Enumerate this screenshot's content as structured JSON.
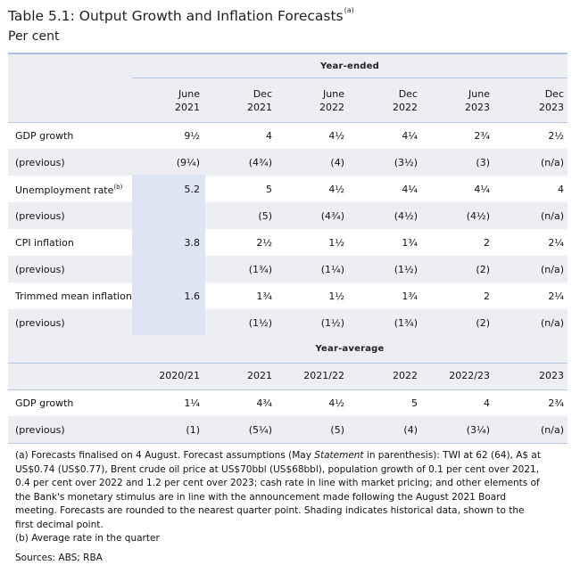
{
  "title": "Table 5.1: Output Growth and Inflation Forecasts",
  "title_note": "(a)",
  "subtitle": "Per cent",
  "section1": {
    "heading": "Year-ended",
    "columns": [
      {
        "line1": "June",
        "line2": "2021"
      },
      {
        "line1": "Dec",
        "line2": "2021"
      },
      {
        "line1": "June",
        "line2": "2022"
      },
      {
        "line1": "Dec",
        "line2": "2022"
      },
      {
        "line1": "June",
        "line2": "2023"
      },
      {
        "line1": "Dec",
        "line2": "2023"
      }
    ],
    "rows": [
      {
        "label": "GDP growth",
        "note": "",
        "values": [
          "9½",
          "4",
          "4½",
          "4¼",
          "2¾",
          "2½"
        ]
      },
      {
        "label": "(previous)",
        "note": "",
        "values": [
          "(9¼)",
          "(4¾)",
          "(4)",
          "(3½)",
          "(3)",
          "(n/a)"
        ]
      },
      {
        "label": "Unemployment rate",
        "note": "(b)",
        "values": [
          "5.2",
          "5",
          "4½",
          "4¼",
          "4¼",
          "4"
        ]
      },
      {
        "label": "(previous)",
        "note": "",
        "values": [
          "",
          "(5)",
          "(4¾)",
          "(4½)",
          "(4½)",
          "(n/a)"
        ]
      },
      {
        "label": "CPI inflation",
        "note": "",
        "values": [
          "3.8",
          "2½",
          "1½",
          "1¾",
          "2",
          "2¼"
        ]
      },
      {
        "label": "(previous)",
        "note": "",
        "values": [
          "",
          "(1¾)",
          "(1¼)",
          "(1½)",
          "(2)",
          "(n/a)"
        ]
      },
      {
        "label": "Trimmed mean inflation",
        "note": "",
        "values": [
          "1.6",
          "1¾",
          "1½",
          "1¾",
          "2",
          "2¼"
        ]
      },
      {
        "label": "(previous)",
        "note": "",
        "values": [
          "",
          "(1½)",
          "(1½)",
          "(1¾)",
          "(2)",
          "(n/a)"
        ]
      }
    ]
  },
  "section2": {
    "heading": "Year-average",
    "columns": [
      "2020/21",
      "2021",
      "2021/22",
      "2022",
      "2022/23",
      "2023"
    ],
    "rows": [
      {
        "label": "GDP growth",
        "values": [
          "1¼",
          "4¾",
          "4½",
          "5",
          "4",
          "2¾"
        ]
      },
      {
        "label": "(previous)",
        "values": [
          "(1)",
          "(5¼)",
          "(5)",
          "(4)",
          "(3¼)",
          "(n/a)"
        ]
      }
    ]
  },
  "notes": {
    "a_before": "(a) Forecasts finalised on 4 August. Forecast assumptions (May ",
    "a_italic": "Statement",
    "a_after": " in parenthesis): TWI at 62 (64), A$ at US$0.74 (US$0.77), Brent crude oil price at US$70bbl (US$68bbl), population growth of 0.1 per cent over 2021, 0.4 per cent over 2022 and 1.2 per cent over 2023; cash rate in line with market pricing; and other elements of the Bank's monetary stimulus are in line with the announcement made following the August 2021 Board meeting. Forecasts are rounded to the nearest quarter point. Shading indicates historical data, shown to the first decimal point.",
    "b": "(b) Average rate in the quarter",
    "sources": "Sources: ABS; RBA"
  }
}
